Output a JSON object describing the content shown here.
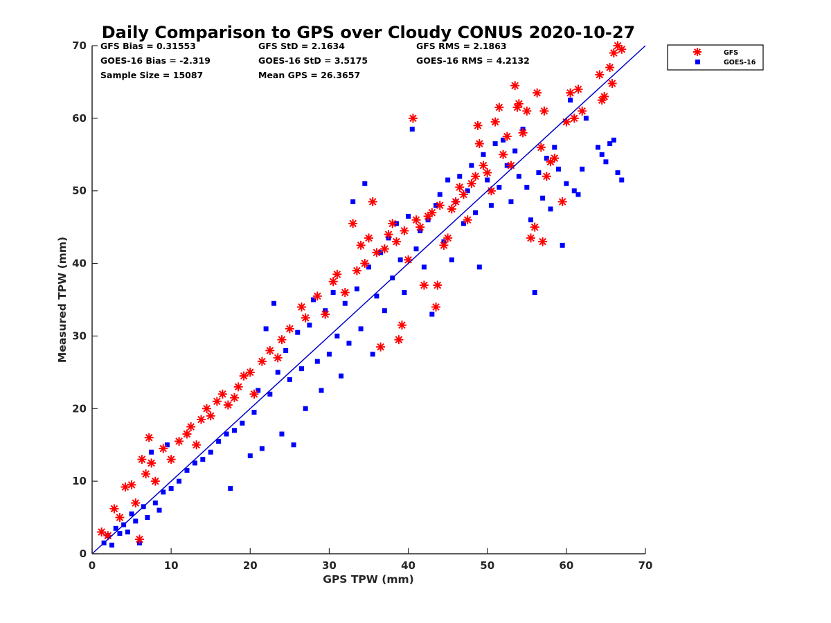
{
  "chart_data": {
    "type": "scatter",
    "title": "Daily Comparison to GPS over Cloudy CONUS 2020-10-27",
    "xlabel": "GPS TPW (mm)",
    "ylabel": "Measured TPW (mm)",
    "xlim": [
      0,
      70
    ],
    "ylim": [
      0,
      70
    ],
    "xticks": [
      "0",
      "10",
      "20",
      "30",
      "40",
      "50",
      "60",
      "70"
    ],
    "yticks": [
      "0",
      "10",
      "20",
      "30",
      "40",
      "50",
      "60",
      "70"
    ],
    "grid": false,
    "legend_position": "outside-top-right",
    "reference_line": {
      "x": [
        0,
        70
      ],
      "y": [
        0,
        70
      ],
      "color": "#0000cc"
    },
    "stats": [
      {
        "id": "gfs_bias",
        "text": "GFS Bias = 0.31553"
      },
      {
        "id": "gfs_std",
        "text": "GFS StD = 2.1634"
      },
      {
        "id": "gfs_rms",
        "text": "GFS RMS = 2.1863"
      },
      {
        "id": "goes_bias",
        "text": "GOES-16 Bias = -2.319"
      },
      {
        "id": "goes_std",
        "text": "GOES-16 StD = 3.5175"
      },
      {
        "id": "goes_rms",
        "text": "GOES-16 RMS = 4.2132"
      },
      {
        "id": "sample_size",
        "text": "Sample Size = 15087"
      },
      {
        "id": "mean_gps",
        "text": "Mean GPS = 26.3657"
      }
    ],
    "series": [
      {
        "name": "GFS",
        "marker": "asterisk",
        "color": "#ff0000",
        "points": [
          [
            1.2,
            3.0
          ],
          [
            2.0,
            2.5
          ],
          [
            2.8,
            6.2
          ],
          [
            3.5,
            5.0
          ],
          [
            4.2,
            9.2
          ],
          [
            5.0,
            9.5
          ],
          [
            5.5,
            7.0
          ],
          [
            6.0,
            2.0
          ],
          [
            6.3,
            13.0
          ],
          [
            6.8,
            11.0
          ],
          [
            7.2,
            16.0
          ],
          [
            7.5,
            12.5
          ],
          [
            8.0,
            10.0
          ],
          [
            9.0,
            14.5
          ],
          [
            10.0,
            13.0
          ],
          [
            11.0,
            15.5
          ],
          [
            12.0,
            16.5
          ],
          [
            12.5,
            17.5
          ],
          [
            13.2,
            15.0
          ],
          [
            13.8,
            18.5
          ],
          [
            14.5,
            20.0
          ],
          [
            15.0,
            19.0
          ],
          [
            15.8,
            21.0
          ],
          [
            16.5,
            22.0
          ],
          [
            17.2,
            20.5
          ],
          [
            18.0,
            21.5
          ],
          [
            18.5,
            23.0
          ],
          [
            19.2,
            24.5
          ],
          [
            20.0,
            25.0
          ],
          [
            20.5,
            22.0
          ],
          [
            21.5,
            26.5
          ],
          [
            22.5,
            28.0
          ],
          [
            23.5,
            27.0
          ],
          [
            24.0,
            29.5
          ],
          [
            25.0,
            31.0
          ],
          [
            26.5,
            34.0
          ],
          [
            27.0,
            32.5
          ],
          [
            28.5,
            35.5
          ],
          [
            29.5,
            33.0
          ],
          [
            30.5,
            37.5
          ],
          [
            31.0,
            38.5
          ],
          [
            32.0,
            36.0
          ],
          [
            33.0,
            45.5
          ],
          [
            33.5,
            39.0
          ],
          [
            34.0,
            42.5
          ],
          [
            34.5,
            40.0
          ],
          [
            35.0,
            43.5
          ],
          [
            35.5,
            48.5
          ],
          [
            36.0,
            41.5
          ],
          [
            36.5,
            28.5
          ],
          [
            37.0,
            42.0
          ],
          [
            37.5,
            44.0
          ],
          [
            38.0,
            45.5
          ],
          [
            38.5,
            43.0
          ],
          [
            38.8,
            29.5
          ],
          [
            39.2,
            31.5
          ],
          [
            39.5,
            44.5
          ],
          [
            40.0,
            40.5
          ],
          [
            40.6,
            60.0
          ],
          [
            41.0,
            46.0
          ],
          [
            41.5,
            45.0
          ],
          [
            42.0,
            37.0
          ],
          [
            42.5,
            46.5
          ],
          [
            43.0,
            47.0
          ],
          [
            43.5,
            34.0
          ],
          [
            43.7,
            37.0
          ],
          [
            44.0,
            48.0
          ],
          [
            44.5,
            42.5
          ],
          [
            45.0,
            43.5
          ],
          [
            45.5,
            47.5
          ],
          [
            46.0,
            48.5
          ],
          [
            46.5,
            50.5
          ],
          [
            47.0,
            49.5
          ],
          [
            47.5,
            46.0
          ],
          [
            48.0,
            51.0
          ],
          [
            48.5,
            52.0
          ],
          [
            48.8,
            59.0
          ],
          [
            49.0,
            56.5
          ],
          [
            49.5,
            53.5
          ],
          [
            50.0,
            52.5
          ],
          [
            50.5,
            50.0
          ],
          [
            51.0,
            59.5
          ],
          [
            51.5,
            61.5
          ],
          [
            52.0,
            55.0
          ],
          [
            52.5,
            57.5
          ],
          [
            53.0,
            53.5
          ],
          [
            53.5,
            64.5
          ],
          [
            53.8,
            61.5
          ],
          [
            54.0,
            62.0
          ],
          [
            54.5,
            58.0
          ],
          [
            55.0,
            61.0
          ],
          [
            55.5,
            43.5
          ],
          [
            56.0,
            45.0
          ],
          [
            56.3,
            63.5
          ],
          [
            56.8,
            56.0
          ],
          [
            57.0,
            43.0
          ],
          [
            57.2,
            61.0
          ],
          [
            57.5,
            52.0
          ],
          [
            58.0,
            54.0
          ],
          [
            58.5,
            54.5
          ],
          [
            59.5,
            48.5
          ],
          [
            60.0,
            59.5
          ],
          [
            60.5,
            63.5
          ],
          [
            61.0,
            60.0
          ],
          [
            61.5,
            64.0
          ],
          [
            62.0,
            61.0
          ],
          [
            64.2,
            66.0
          ],
          [
            64.8,
            63.0
          ],
          [
            65.5,
            67.0
          ],
          [
            66.0,
            69.0
          ],
          [
            66.5,
            70.0
          ],
          [
            67.0,
            69.5
          ],
          [
            65.8,
            64.8
          ],
          [
            64.5,
            62.5
          ]
        ]
      },
      {
        "name": "GOES-16",
        "marker": "square",
        "color": "#0000ff",
        "points": [
          [
            1.5,
            1.5
          ],
          [
            2.0,
            2.5
          ],
          [
            2.5,
            1.2
          ],
          [
            3.0,
            3.5
          ],
          [
            3.5,
            2.8
          ],
          [
            4.0,
            4.0
          ],
          [
            4.5,
            3.0
          ],
          [
            5.0,
            5.5
          ],
          [
            5.5,
            4.5
          ],
          [
            6.0,
            1.5
          ],
          [
            6.5,
            6.5
          ],
          [
            7.0,
            5.0
          ],
          [
            7.5,
            14.0
          ],
          [
            8.0,
            7.0
          ],
          [
            8.5,
            6.0
          ],
          [
            9.0,
            8.5
          ],
          [
            9.5,
            15.0
          ],
          [
            10.0,
            9.0
          ],
          [
            11.0,
            10.0
          ],
          [
            12.0,
            11.5
          ],
          [
            13.0,
            12.5
          ],
          [
            14.0,
            13.0
          ],
          [
            15.0,
            14.0
          ],
          [
            16.0,
            15.5
          ],
          [
            17.0,
            16.5
          ],
          [
            17.5,
            9.0
          ],
          [
            18.0,
            17.0
          ],
          [
            19.0,
            18.0
          ],
          [
            20.0,
            13.5
          ],
          [
            20.5,
            19.5
          ],
          [
            21.0,
            22.5
          ],
          [
            21.5,
            14.5
          ],
          [
            22.0,
            31.0
          ],
          [
            22.5,
            22.0
          ],
          [
            23.0,
            34.5
          ],
          [
            23.5,
            25.0
          ],
          [
            24.0,
            16.5
          ],
          [
            24.5,
            28.0
          ],
          [
            25.0,
            24.0
          ],
          [
            25.5,
            15.0
          ],
          [
            26.0,
            30.5
          ],
          [
            26.5,
            25.5
          ],
          [
            27.0,
            20.0
          ],
          [
            27.5,
            31.5
          ],
          [
            28.0,
            35.0
          ],
          [
            28.5,
            26.5
          ],
          [
            29.0,
            22.5
          ],
          [
            29.5,
            33.5
          ],
          [
            30.0,
            27.5
          ],
          [
            30.5,
            36.0
          ],
          [
            31.0,
            30.0
          ],
          [
            31.5,
            24.5
          ],
          [
            32.0,
            34.5
          ],
          [
            32.5,
            29.0
          ],
          [
            33.0,
            48.5
          ],
          [
            33.5,
            36.5
          ],
          [
            34.0,
            31.0
          ],
          [
            34.5,
            51.0
          ],
          [
            35.0,
            39.5
          ],
          [
            35.5,
            27.5
          ],
          [
            36.0,
            35.5
          ],
          [
            36.5,
            41.5
          ],
          [
            37.0,
            33.5
          ],
          [
            37.5,
            43.5
          ],
          [
            38.0,
            38.0
          ],
          [
            38.5,
            45.5
          ],
          [
            39.0,
            40.5
          ],
          [
            39.5,
            36.0
          ],
          [
            40.0,
            46.5
          ],
          [
            40.5,
            58.5
          ],
          [
            41.0,
            42.0
          ],
          [
            41.5,
            44.5
          ],
          [
            42.0,
            39.5
          ],
          [
            42.5,
            46.0
          ],
          [
            43.0,
            33.0
          ],
          [
            43.5,
            48.0
          ],
          [
            44.0,
            49.5
          ],
          [
            44.5,
            43.0
          ],
          [
            45.0,
            51.5
          ],
          [
            45.5,
            40.5
          ],
          [
            46.0,
            48.5
          ],
          [
            46.5,
            52.0
          ],
          [
            47.0,
            45.5
          ],
          [
            47.5,
            50.0
          ],
          [
            48.0,
            53.5
          ],
          [
            48.5,
            47.0
          ],
          [
            49.0,
            39.5
          ],
          [
            49.5,
            55.0
          ],
          [
            50.0,
            51.5
          ],
          [
            50.5,
            48.0
          ],
          [
            51.0,
            56.5
          ],
          [
            51.5,
            50.5
          ],
          [
            52.0,
            57.0
          ],
          [
            52.5,
            53.5
          ],
          [
            53.0,
            48.5
          ],
          [
            53.5,
            55.5
          ],
          [
            54.0,
            52.0
          ],
          [
            54.5,
            58.5
          ],
          [
            55.0,
            50.5
          ],
          [
            55.5,
            46.0
          ],
          [
            56.0,
            36.0
          ],
          [
            56.5,
            52.5
          ],
          [
            57.0,
            49.0
          ],
          [
            57.5,
            54.5
          ],
          [
            58.0,
            47.5
          ],
          [
            58.5,
            56.0
          ],
          [
            59.0,
            53.0
          ],
          [
            59.5,
            42.5
          ],
          [
            60.0,
            51.0
          ],
          [
            60.5,
            62.5
          ],
          [
            61.0,
            50.0
          ],
          [
            61.5,
            49.5
          ],
          [
            62.0,
            53.0
          ],
          [
            62.5,
            60.0
          ],
          [
            64.0,
            56.0
          ],
          [
            64.5,
            55.0
          ],
          [
            65.0,
            54.0
          ],
          [
            65.5,
            56.5
          ],
          [
            66.0,
            57.0
          ],
          [
            66.5,
            52.5
          ],
          [
            67.0,
            51.5
          ]
        ]
      }
    ]
  }
}
